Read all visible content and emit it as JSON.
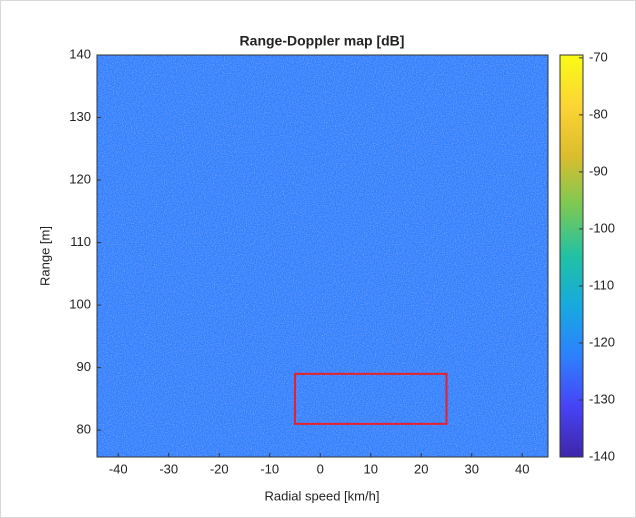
{
  "chart_data": {
    "type": "heatmap",
    "title": "Range-Doppler map [dB]",
    "xlabel": "Radial speed [km/h]",
    "ylabel": "Range [m]",
    "xlim": [
      -44.2,
      45.1
    ],
    "xticks": [
      -40,
      -30,
      -20,
      -10,
      0,
      10,
      20,
      30,
      40
    ],
    "ylim": [
      75.7,
      140
    ],
    "yticks": [
      80,
      90,
      100,
      110,
      120,
      130,
      140
    ],
    "clim": [
      -140,
      -69.5
    ],
    "cticks": [
      -140,
      -130,
      -120,
      -110,
      -100,
      -90,
      -80,
      -70
    ],
    "colormap": [
      "#3e26a8",
      "#4743f5",
      "#2d80fe",
      "#17a9df",
      "#21c1a4",
      "#7bc954",
      "#dcbd2d",
      "#fcd535",
      "#f9fb15"
    ],
    "highlight_box": {
      "xlim": [
        -5,
        25
      ],
      "ylim": [
        81,
        89
      ],
      "color": "#e8202a"
    }
  }
}
